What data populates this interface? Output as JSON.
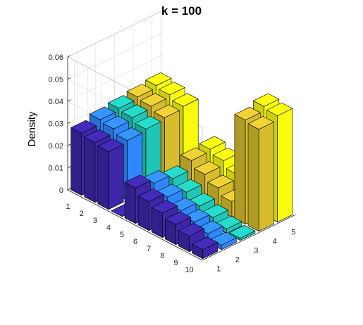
{
  "chart_data": {
    "type": "bar3",
    "title": "k = 100",
    "zlabel": "Density",
    "zlim": [
      0,
      0.06
    ],
    "zticks": [
      "0",
      "0.01",
      "0.02",
      "0.03",
      "0.04",
      "0.05",
      "0.06"
    ],
    "rows": [
      "1",
      "2",
      "3",
      "4",
      "5",
      "6",
      "7",
      "8",
      "9",
      "10"
    ],
    "columns": [
      "1",
      "2",
      "3",
      "4",
      "5"
    ],
    "grid": true,
    "series": [
      {
        "values": [
          0.028,
          0.027,
          0.026,
          0.0,
          0.016,
          0.013,
          0.011,
          0.009,
          0.007,
          0.004
        ]
      },
      {
        "values": [
          0.03,
          0.029,
          0.027,
          0.0,
          0.014,
          0.011,
          0.008,
          0.006,
          0.004,
          0.002
        ]
      },
      {
        "values": [
          0.031,
          0.03,
          0.028,
          0.0,
          0.012,
          0.009,
          0.006,
          0.004,
          0.002,
          0.001
        ]
      },
      {
        "values": [
          0.032,
          0.031,
          0.029,
          0.0,
          0.016,
          0.013,
          0.01,
          0.007,
          0.047,
          0.046
        ]
      },
      {
        "values": [
          0.033,
          0.032,
          0.03,
          0.0,
          0.017,
          0.015,
          0.012,
          0.009,
          0.049,
          0.048
        ]
      }
    ],
    "colors": [
      "#3e26a8",
      "#2f86ff",
      "#20c6b5",
      "#d7bd2e",
      "#f9fb0e"
    ]
  }
}
